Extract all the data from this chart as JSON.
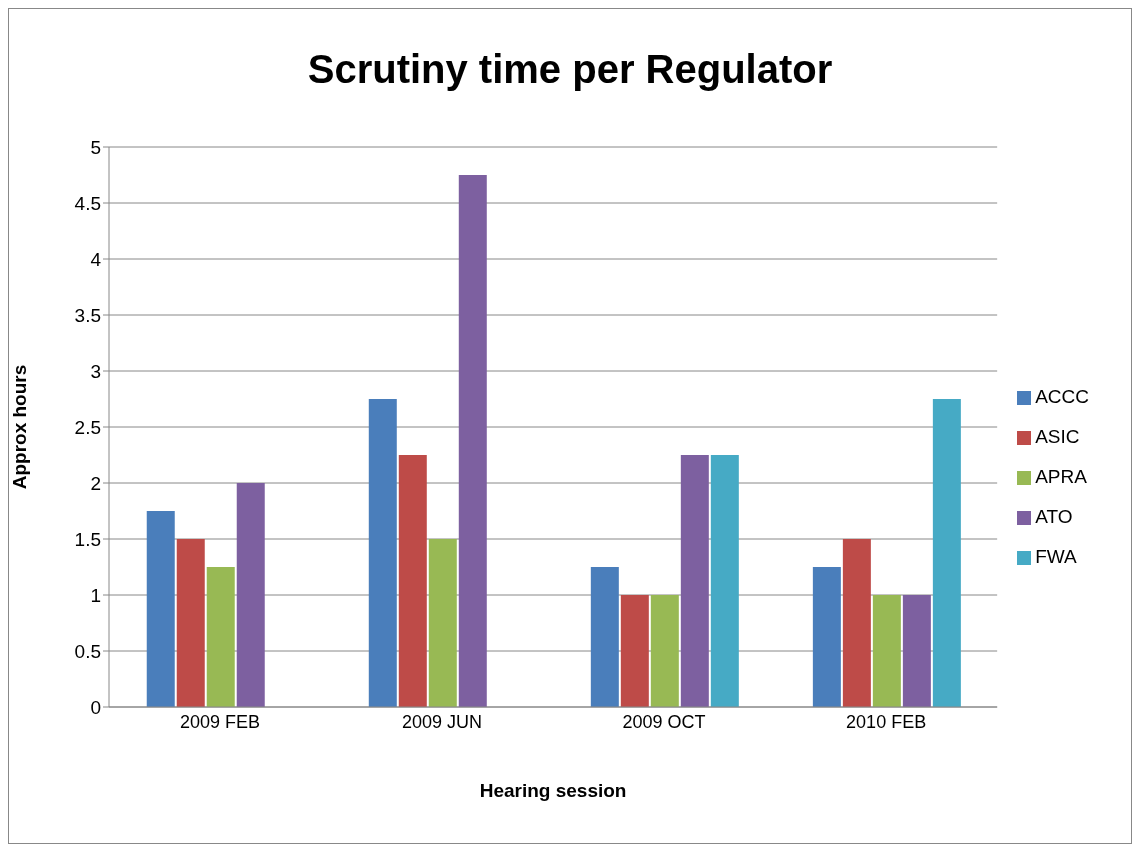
{
  "chart_data": {
    "type": "bar",
    "title": "Scrutiny time per Regulator",
    "xlabel": "Hearing session",
    "ylabel": "Approx hours",
    "categories": [
      "2009 FEB",
      "2009 JUN",
      "2009 OCT",
      "2010 FEB"
    ],
    "series": [
      {
        "name": "ACCC",
        "color": "#4a7ebb",
        "values": [
          1.75,
          2.75,
          1.25,
          1.25
        ]
      },
      {
        "name": "ASIC",
        "color": "#be4b48",
        "values": [
          1.5,
          2.25,
          1,
          1.5
        ]
      },
      {
        "name": "APRA",
        "color": "#98b954",
        "values": [
          1.25,
          1.5,
          1,
          1
        ]
      },
      {
        "name": "ATO",
        "color": "#7d60a0",
        "values": [
          2,
          4.75,
          2.25,
          1
        ]
      },
      {
        "name": "FWA",
        "color": "#46aac5",
        "values": [
          null,
          null,
          2.25,
          2.75
        ]
      }
    ],
    "ylim": [
      0,
      5
    ],
    "yticks": [
      0,
      0.5,
      1,
      1.5,
      2,
      2.5,
      3,
      3.5,
      4,
      4.5,
      5
    ],
    "grid": "y",
    "legend": "right"
  }
}
